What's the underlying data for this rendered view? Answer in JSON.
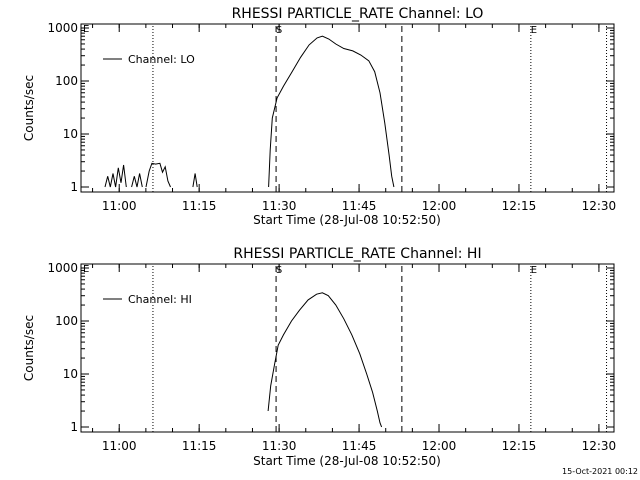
{
  "footer": {
    "timestamp": "15-Oct-2021 00:12"
  },
  "chart_data": [
    {
      "type": "line",
      "title": "RHESSI PARTICLE_RATE Channel: LO",
      "xlabel": "Start Time (28-Jul-08 10:52:50)",
      "ylabel": "Counts/sec",
      "yscale": "log",
      "ylim": [
        1,
        1000
      ],
      "xlim_minutes_after_start": [
        0,
        100
      ],
      "x_ticks": [
        {
          "minute": 7.17,
          "label": "11:00"
        },
        {
          "minute": 22.17,
          "label": "11:15"
        },
        {
          "minute": 37.17,
          "label": "11:30"
        },
        {
          "minute": 52.17,
          "label": "11:45"
        },
        {
          "minute": 67.17,
          "label": "12:00"
        },
        {
          "minute": 82.17,
          "label": "12:15"
        },
        {
          "minute": 97.17,
          "label": "12:30"
        }
      ],
      "y_ticks": [
        {
          "value": 1,
          "label": "1"
        },
        {
          "value": 10,
          "label": "10"
        },
        {
          "value": 100,
          "label": "100"
        },
        {
          "value": 1000,
          "label": "1000"
        }
      ],
      "legend": {
        "label": "Channel: LO",
        "position": "top-left"
      },
      "markers": [
        {
          "minute": 13.5,
          "style": "dotted",
          "label": ""
        },
        {
          "minute": 36.6,
          "style": "dashed",
          "label": "S"
        },
        {
          "minute": 60.2,
          "style": "dashed",
          "label": ""
        },
        {
          "minute": 84.4,
          "style": "dotted",
          "label": "E"
        },
        {
          "minute": 98.6,
          "style": "dotted",
          "label": ""
        }
      ],
      "edge_label": "E",
      "series": [
        {
          "name": "Channel: LO",
          "segments": [
            [
              [
                4.5,
                1
              ],
              [
                5,
                1.6
              ],
              [
                5.5,
                1
              ],
              [
                6,
                1.8
              ],
              [
                6.5,
                1
              ],
              [
                7,
                2.3
              ],
              [
                7.5,
                1.2
              ],
              [
                8,
                2.6
              ],
              [
                8.5,
                1
              ]
            ],
            [
              [
                9.5,
                1
              ],
              [
                10,
                1.6
              ],
              [
                10.5,
                1
              ],
              [
                11,
                1.8
              ],
              [
                11.5,
                1
              ]
            ],
            [
              [
                12.2,
                1
              ],
              [
                12.8,
                2
              ],
              [
                13.3,
                2.8
              ],
              [
                14,
                2.7
              ],
              [
                14.8,
                2.8
              ],
              [
                15.3,
                1.9
              ],
              [
                15.8,
                2.4
              ],
              [
                16.3,
                1.3
              ],
              [
                16.8,
                1
              ]
            ],
            [
              [
                21,
                1
              ],
              [
                21.4,
                1.8
              ],
              [
                21.8,
                1
              ]
            ],
            [
              [
                35.2,
                1
              ],
              [
                35.5,
                5
              ],
              [
                35.9,
                20
              ],
              [
                36.8,
                48
              ],
              [
                38,
                80
              ],
              [
                39.6,
                150
              ],
              [
                41.2,
                280
              ],
              [
                42.8,
                480
              ],
              [
                44.3,
                650
              ],
              [
                45.3,
                700
              ],
              [
                46.5,
                620
              ],
              [
                47.8,
                500
              ],
              [
                49.3,
                410
              ],
              [
                51,
                370
              ],
              [
                52.5,
                310
              ],
              [
                54,
                240
              ],
              [
                55.1,
                150
              ],
              [
                56.1,
                60
              ],
              [
                57,
                16
              ],
              [
                57.8,
                4
              ],
              [
                58.3,
                1.6
              ],
              [
                58.7,
                1
              ]
            ]
          ]
        }
      ]
    },
    {
      "type": "line",
      "title": "RHESSI PARTICLE_RATE Channel: HI",
      "xlabel": "Start Time (28-Jul-08 10:52:50)",
      "ylabel": "Counts/sec",
      "yscale": "log",
      "ylim": [
        1,
        1000
      ],
      "xlim_minutes_after_start": [
        0,
        100
      ],
      "x_ticks": [
        {
          "minute": 7.17,
          "label": "11:00"
        },
        {
          "minute": 22.17,
          "label": "11:15"
        },
        {
          "minute": 37.17,
          "label": "11:30"
        },
        {
          "minute": 52.17,
          "label": "11:45"
        },
        {
          "minute": 67.17,
          "label": "12:00"
        },
        {
          "minute": 82.17,
          "label": "12:15"
        },
        {
          "minute": 97.17,
          "label": "12:30"
        }
      ],
      "y_ticks": [
        {
          "value": 1,
          "label": "1"
        },
        {
          "value": 10,
          "label": "10"
        },
        {
          "value": 100,
          "label": "100"
        },
        {
          "value": 1000,
          "label": "1000"
        }
      ],
      "legend": {
        "label": "Channel: HI",
        "position": "top-left"
      },
      "markers": [
        {
          "minute": 13.5,
          "style": "dotted",
          "label": ""
        },
        {
          "minute": 36.6,
          "style": "dashed",
          "label": "S"
        },
        {
          "minute": 60.2,
          "style": "dashed",
          "label": ""
        },
        {
          "minute": 84.4,
          "style": "dotted",
          "label": "E"
        },
        {
          "minute": 98.6,
          "style": "dotted",
          "label": ""
        }
      ],
      "edge_label": "E",
      "series": [
        {
          "name": "Channel: HI",
          "segments": [
            [
              [
                35.1,
                2
              ],
              [
                35.6,
                6
              ],
              [
                36.3,
                15
              ],
              [
                37,
                35
              ],
              [
                38,
                55
              ],
              [
                39.5,
                100
              ],
              [
                41,
                160
              ],
              [
                42.6,
                250
              ],
              [
                44.2,
                320
              ],
              [
                45.3,
                340
              ],
              [
                46.4,
                300
              ],
              [
                47.8,
                200
              ],
              [
                49.3,
                110
              ],
              [
                50.8,
                55
              ],
              [
                52.3,
                24
              ],
              [
                53.6,
                10
              ],
              [
                54.7,
                4.5
              ],
              [
                55.6,
                2
              ],
              [
                56.1,
                1.2
              ],
              [
                56.4,
                1
              ]
            ]
          ]
        }
      ]
    }
  ]
}
